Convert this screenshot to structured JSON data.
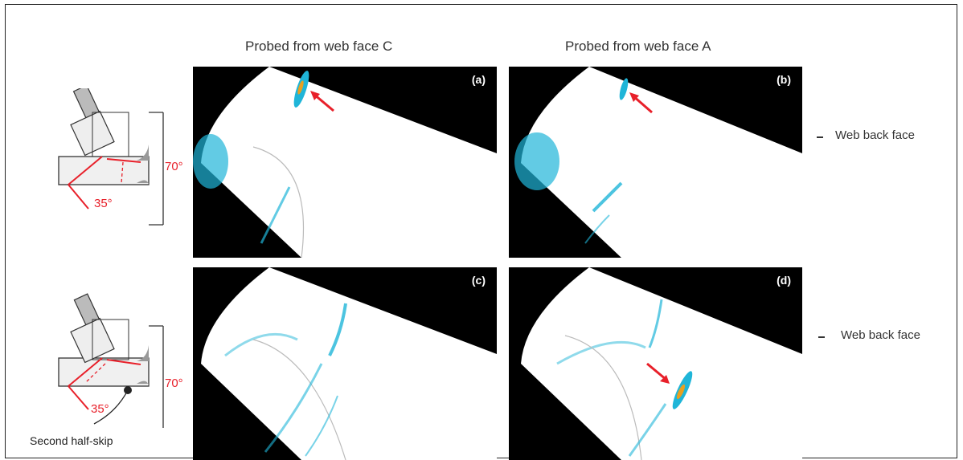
{
  "columns": {
    "left_title": "Probed from web face C",
    "right_title": "Probed from web face A"
  },
  "panels": [
    {
      "id": "a",
      "label": "(a)"
    },
    {
      "id": "b",
      "label": "(b)"
    },
    {
      "id": "c",
      "label": "(c)"
    },
    {
      "id": "d",
      "label": "(d)"
    }
  ],
  "rows": [
    {
      "side_label": "Web back face",
      "angle_70": "70°",
      "angle_35": "35°"
    },
    {
      "side_label": "Web back face",
      "angle_70": "70°",
      "angle_35": "35°",
      "callout": "Second half-skip"
    }
  ],
  "colors": {
    "panel_background": "#000000",
    "fan_fill": "#ffffff",
    "echo": "#1fb5d8",
    "arrow": "#e8202a"
  }
}
